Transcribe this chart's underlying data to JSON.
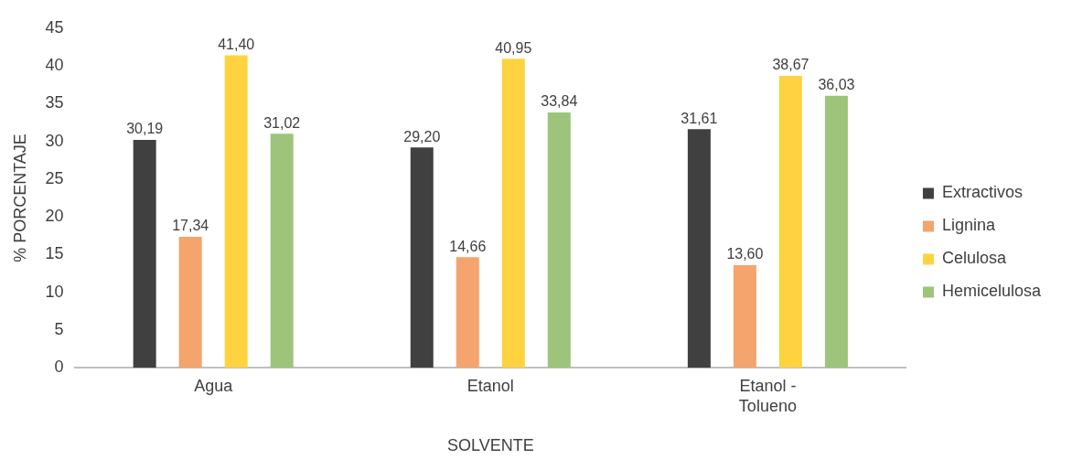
{
  "chart_data": {
    "type": "bar",
    "xlabel": "SOLVENTE",
    "ylabel": "% PORCENTAJE",
    "categories": [
      "Agua",
      "Etanol",
      "Etanol - Tolueno"
    ],
    "ylim": [
      0,
      45
    ],
    "yticks": [
      0,
      5,
      10,
      15,
      20,
      25,
      30,
      35,
      40,
      45
    ],
    "grid": false,
    "legend": "right",
    "series": [
      {
        "name": "Extractivos",
        "color": "#404040",
        "values": [
          30.19,
          29.2,
          31.61
        ],
        "value_labels": [
          "30,19",
          "29,20",
          "31,61"
        ]
      },
      {
        "name": "Lignina",
        "color": "#f4a46c",
        "values": [
          17.34,
          14.66,
          13.6
        ],
        "value_labels": [
          "17,34",
          "14,66",
          "13,60"
        ]
      },
      {
        "name": "Celulosa",
        "color": "#ffd23f",
        "values": [
          41.4,
          40.95,
          38.67
        ],
        "value_labels": [
          "41,40",
          "40,95",
          "38,67"
        ]
      },
      {
        "name": "Hemicelulosa",
        "color": "#9dc47a",
        "values": [
          31.02,
          33.84,
          36.03
        ],
        "value_labels": [
          "31,02",
          "33,84",
          "36,03"
        ]
      }
    ]
  }
}
